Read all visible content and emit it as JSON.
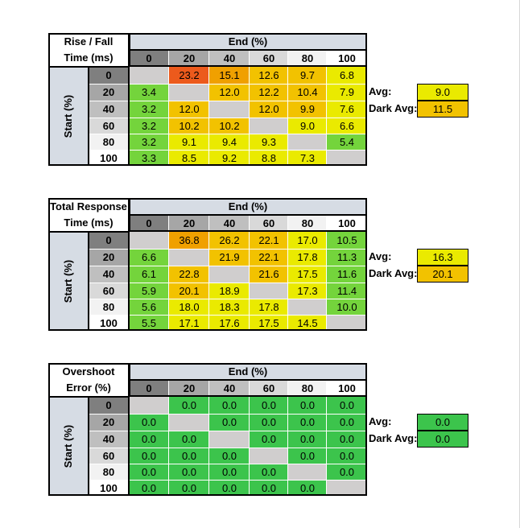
{
  "chart_data": [
    {
      "type": "heatmap",
      "title_lines": [
        "Rise / Fall",
        "Time (ms)"
      ],
      "x_title": "End (%)",
      "y_title": "Start (%)",
      "levels": [
        "0",
        "20",
        "40",
        "60",
        "80",
        "100"
      ],
      "values": [
        [
          null,
          23.2,
          15.1,
          12.6,
          9.7,
          6.8
        ],
        [
          3.4,
          null,
          12.0,
          12.2,
          10.4,
          7.9
        ],
        [
          3.2,
          12.0,
          null,
          12.0,
          9.9,
          7.6
        ],
        [
          3.2,
          10.2,
          10.2,
          null,
          9.0,
          6.6
        ],
        [
          3.2,
          9.1,
          9.4,
          9.3,
          null,
          5.4
        ],
        [
          3.3,
          8.5,
          9.2,
          8.8,
          7.3,
          null
        ]
      ],
      "stats": [
        {
          "label": "Avg:",
          "value": "9.0"
        },
        {
          "label": "Dark Avg:",
          "value": "11.5"
        }
      ]
    },
    {
      "type": "heatmap",
      "title_lines": [
        "Total Response",
        "Time (ms)"
      ],
      "x_title": "End (%)",
      "y_title": "Start (%)",
      "levels": [
        "0",
        "20",
        "40",
        "60",
        "80",
        "100"
      ],
      "values": [
        [
          null,
          36.8,
          26.2,
          22.1,
          17.0,
          10.5
        ],
        [
          6.6,
          null,
          21.9,
          22.1,
          17.8,
          11.3
        ],
        [
          6.1,
          22.8,
          null,
          21.6,
          17.5,
          11.6
        ],
        [
          5.9,
          20.1,
          18.9,
          null,
          17.3,
          11.4
        ],
        [
          5.6,
          18.0,
          18.3,
          17.8,
          null,
          10.0
        ],
        [
          5.5,
          17.1,
          17.6,
          17.5,
          14.5,
          null
        ]
      ],
      "stats": [
        {
          "label": "Avg:",
          "value": "16.3"
        },
        {
          "label": "Dark Avg:",
          "value": "20.1"
        }
      ]
    },
    {
      "type": "heatmap",
      "title_lines": [
        "Overshoot",
        "Error (%)"
      ],
      "x_title": "End (%)",
      "y_title": "Start (%)",
      "levels": [
        "0",
        "20",
        "40",
        "60",
        "80",
        "100"
      ],
      "values": [
        [
          null,
          0.0,
          0.0,
          0.0,
          0.0,
          0.0
        ],
        [
          0.0,
          null,
          0.0,
          0.0,
          0.0,
          0.0
        ],
        [
          0.0,
          0.0,
          null,
          0.0,
          0.0,
          0.0
        ],
        [
          0.0,
          0.0,
          0.0,
          null,
          0.0,
          0.0
        ],
        [
          0.0,
          0.0,
          0.0,
          0.0,
          null,
          0.0
        ],
        [
          0.0,
          0.0,
          0.0,
          0.0,
          0.0,
          null
        ]
      ],
      "stats": [
        {
          "label": "Avg:",
          "value": "0.0"
        },
        {
          "label": "Dark Avg:",
          "value": "0.0"
        }
      ]
    }
  ],
  "colors": {
    "header_band": "#d6dce4",
    "diagonal": "#d0cece",
    "level_shades": [
      "#7f7f7f",
      "#a6a6a6",
      "#bfbfbf",
      "#d9d9d9",
      "#f2f2f2",
      "#ffffff"
    ],
    "overshoot_ok": "#3cc44c",
    "response_scale": [
      "#74d43c",
      "#eaea00",
      "#f2c200",
      "#f0a000",
      "#ec5a1c"
    ]
  }
}
